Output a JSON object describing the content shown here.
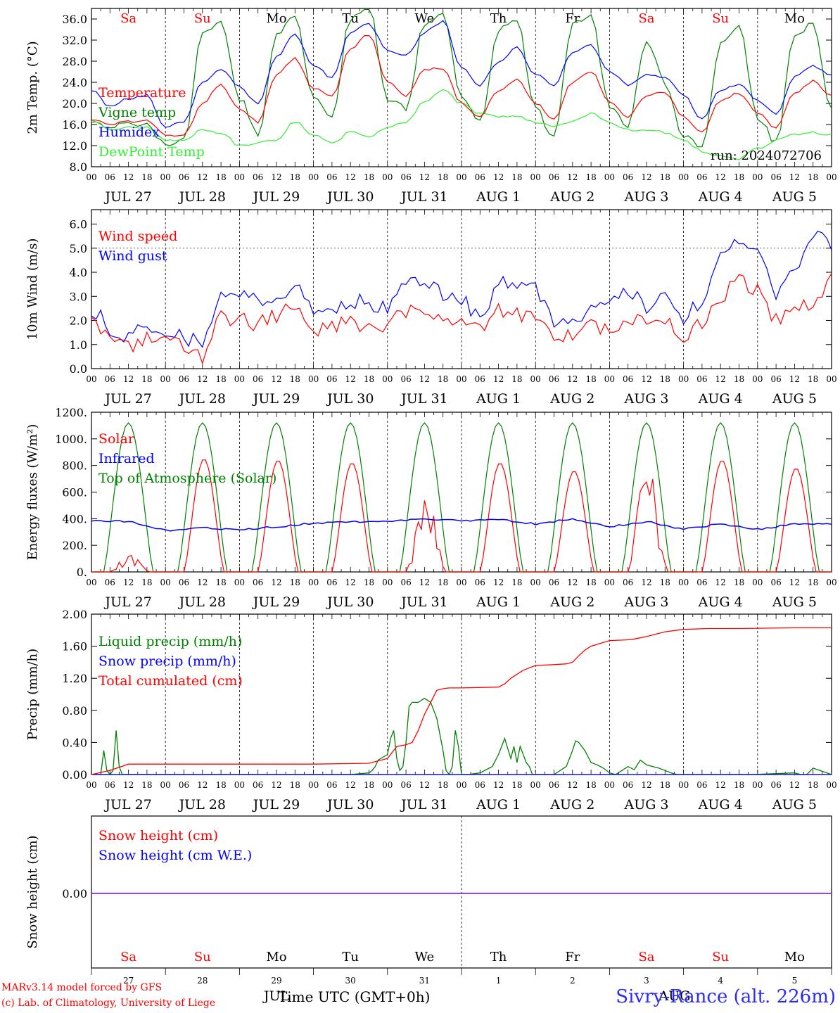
{
  "footer": {
    "model": "MARv3.14 model forced by GFS",
    "credit": "(c) Lab. of Climatology, University of Liege",
    "station": "Sivry-Rance (alt. 226m)"
  },
  "chart_data": {
    "days": {
      "weekdays": [
        "Sa",
        "Su",
        "Mo",
        "Tu",
        "We",
        "Th",
        "Fr",
        "Sa",
        "Su",
        "Mo"
      ],
      "weekend": [
        true,
        true,
        false,
        false,
        false,
        false,
        false,
        true,
        true,
        false
      ],
      "date_labels": [
        "JUL 27",
        "JUL 28",
        "JUL 29",
        "JUL 30",
        "JUL 31",
        "AUG  1",
        "AUG  2",
        "AUG  3",
        "AUG  4",
        "AUG  5"
      ],
      "day_numbers": [
        "27",
        "28",
        "29",
        "30",
        "31",
        "1",
        "2",
        "3",
        "4",
        "5"
      ],
      "hour_labels": [
        "00",
        "06",
        "12",
        "18"
      ],
      "final_hour_label": "00"
    },
    "panels": [
      {
        "id": "temperature",
        "type": "line",
        "ylabel": "2m Temp. (°C)",
        "ylim": [
          8,
          38
        ],
        "yticks": [
          "8.0",
          "12.0",
          "16.0",
          "20.0",
          "24.0",
          "28.0",
          "32.0",
          "36.0"
        ],
        "ytick_values": [
          8,
          12,
          16,
          20,
          24,
          28,
          32,
          36
        ],
        "annotation": "run: 2024072706",
        "x_hours": [
          0,
          6,
          12,
          18,
          24,
          30,
          36,
          42,
          48,
          54,
          60,
          66,
          72,
          78,
          84,
          90,
          96,
          102,
          108,
          114,
          120,
          126,
          132,
          138,
          144,
          150,
          156,
          162,
          168,
          174,
          180,
          186,
          192,
          198,
          204,
          210,
          216,
          222,
          228,
          234,
          240
        ],
        "series": [
          {
            "name": "Temperature",
            "color": "#ff0000",
            "values": [
              17.0,
              16.0,
              16.5,
              16.8,
              14.0,
              14.0,
              20.0,
              23.5,
              19.0,
              16.5,
              25.5,
              28.5,
              23.0,
              21.5,
              30.5,
              33.0,
              24.0,
              21.5,
              26.5,
              26.5,
              20.0,
              17.5,
              22.5,
              24.5,
              20.0,
              17.0,
              24.0,
              26.0,
              20.5,
              17.5,
              21.5,
              22.0,
              17.5,
              14.5,
              20.5,
              22.0,
              18.0,
              15.5,
              22.0,
              24.2,
              21.5
            ]
          },
          {
            "name": "Vigne temp",
            "color": "#008000",
            "values": [
              17.0,
              15.0,
              16.5,
              16.0,
              12.0,
              13.0,
              33.0,
              35.0,
              21.0,
              14.0,
              33.0,
              37.0,
              21.0,
              17.5,
              36.0,
              38.0,
              21.0,
              19.0,
              35.0,
              37.0,
              21.0,
              16.5,
              34.0,
              35.5,
              19.0,
              13.5,
              35.0,
              36.5,
              19.5,
              16.0,
              31.5,
              24.0,
              14.0,
              12.0,
              31.0,
              34.5,
              17.5,
              12.5,
              33.0,
              35.0,
              19.0
            ]
          },
          {
            "name": "Humidex",
            "color": "#0000ff",
            "values": [
              22.5,
              19.5,
              21.0,
              21.5,
              15.5,
              16.5,
              24.0,
              26.5,
              23.0,
              20.0,
              29.0,
              33.0,
              27.0,
              25.0,
              33.5,
              35.0,
              30.0,
              29.0,
              33.5,
              35.5,
              27.0,
              23.5,
              28.0,
              30.5,
              25.5,
              23.5,
              29.5,
              31.0,
              26.0,
              23.5,
              25.5,
              25.0,
              21.5,
              17.0,
              22.5,
              23.5,
              20.5,
              18.0,
              25.0,
              27.0,
              25.5
            ]
          },
          {
            "name": "DewPoint Temp",
            "color": "#33ee33",
            "values": [
              17.0,
              15.0,
              15.5,
              15.5,
              13.0,
              13.0,
              15.0,
              14.5,
              12.0,
              12.5,
              13.0,
              16.5,
              14.0,
              12.5,
              14.5,
              13.5,
              15.5,
              16.5,
              20.5,
              22.5,
              20.0,
              18.0,
              17.5,
              17.5,
              16.5,
              15.5,
              16.5,
              18.0,
              16.5,
              15.0,
              15.0,
              14.5,
              13.0,
              11.0,
              10.0,
              9.5,
              11.5,
              13.0,
              14.0,
              14.5,
              14.0
            ]
          }
        ]
      },
      {
        "id": "wind",
        "type": "line",
        "ylabel": "10m Wind (m/s)",
        "ylim": [
          0,
          6.6
        ],
        "yticks": [
          "0.0",
          "1.0",
          "2.0",
          "3.0",
          "4.0",
          "5.0",
          "6.0"
        ],
        "ytick_values": [
          0,
          1,
          2,
          3,
          4,
          5,
          6
        ],
        "reference_line": 5.0,
        "x_hours": [
          0,
          6,
          12,
          18,
          24,
          30,
          36,
          42,
          48,
          54,
          60,
          66,
          72,
          78,
          84,
          90,
          96,
          102,
          108,
          114,
          120,
          126,
          132,
          138,
          144,
          150,
          156,
          162,
          168,
          174,
          180,
          186,
          192,
          198,
          204,
          210,
          216,
          222,
          228,
          234,
          240
        ],
        "series": [
          {
            "name": "Wind speed",
            "color": "#ff0000",
            "values": [
              1.8,
              1.2,
              0.8,
              1.2,
              1.3,
              1.0,
              0.5,
              2.2,
              2.0,
              1.8,
              2.2,
              2.6,
              1.5,
              1.8,
              2.0,
              1.7,
              1.8,
              2.4,
              2.6,
              2.0,
              1.8,
              1.5,
              2.5,
              2.2,
              2.3,
              1.2,
              1.3,
              1.8,
              1.7,
              1.9,
              2.0,
              2.2,
              1.3,
              2.0,
              3.0,
              3.6,
              3.3,
              2.0,
              2.6,
              2.8,
              3.7
            ]
          },
          {
            "name": "Wind gust",
            "color": "#0000ff",
            "values": [
              2.5,
              1.7,
              1.3,
              1.8,
              1.7,
              1.3,
              1.1,
              3.0,
              3.1,
              2.8,
              3.0,
              3.6,
              2.2,
              2.6,
              2.8,
              2.7,
              2.6,
              3.5,
              3.7,
              3.0,
              2.9,
              2.1,
              3.6,
              3.2,
              3.5,
              1.8,
              1.9,
              2.5,
              2.8,
              3.3,
              2.5,
              3.2,
              2.2,
              2.8,
              4.5,
              5.2,
              4.8,
              2.9,
              4.0,
              5.7,
              4.9
            ]
          }
        ]
      },
      {
        "id": "energy",
        "type": "line",
        "ylabel": "Energy fluxes (W/m²)",
        "ylim": [
          0,
          1200
        ],
        "yticks": [
          "0.",
          "200.",
          "400.",
          "600.",
          "800.",
          "1000.",
          "1200."
        ],
        "ytick_values": [
          0,
          200,
          400,
          600,
          800,
          1000,
          1200
        ],
        "toa_peak": 1120,
        "toa_sunrise_hour": 4,
        "toa_sunset_hour": 20,
        "solar_daily_peak": [
          130,
          850,
          840,
          820,
          530,
          820,
          760,
          760,
          840,
          780
        ],
        "infrared": {
          "x_hours": [
            0,
            12,
            24,
            36,
            48,
            60,
            72,
            84,
            96,
            108,
            120,
            132,
            144,
            156,
            168,
            180,
            192,
            204,
            216,
            228,
            240
          ],
          "values": [
            385,
            380,
            310,
            330,
            315,
            340,
            365,
            375,
            380,
            395,
            385,
            395,
            360,
            400,
            340,
            380,
            320,
            360,
            320,
            360,
            365
          ]
        },
        "series": [
          {
            "name": "Solar",
            "color": "#ff0000"
          },
          {
            "name": "Infrared",
            "color": "#0000ff"
          },
          {
            "name": "Top of Atmosphere (Solar)",
            "color": "#008000"
          }
        ]
      },
      {
        "id": "precip",
        "type": "line",
        "ylabel": "Precip (mm/h)",
        "ylim": [
          0,
          2.0
        ],
        "yticks": [
          "0.00",
          "0.40",
          "0.80",
          "1.20",
          "1.60",
          "2.00"
        ],
        "ytick_values": [
          0,
          0.4,
          0.8,
          1.2,
          1.6,
          2.0
        ],
        "series": [
          {
            "name": "Liquid precip (mm/h)",
            "color": "#008000",
            "x_hours": [
              0,
              3,
              4,
              5,
              6,
              7,
              8,
              9,
              10,
              11,
              12,
              24,
              36,
              48,
              60,
              72,
              84,
              90,
              91,
              92,
              93,
              96,
              97,
              98,
              99,
              100,
              101,
              102,
              103,
              104,
              106,
              108,
              110,
              112,
              114,
              115,
              116,
              117,
              118,
              119,
              120,
              121,
              122,
              126,
              130,
              132,
              134,
              136,
              137,
              138,
              139,
              140,
              141,
              142,
              143,
              144,
              150,
              154,
              156,
              157,
              158,
              159,
              160,
              162,
              164,
              166,
              168,
              170,
              172,
              174,
              176,
              178,
              180,
              182,
              184,
              186,
              188,
              190,
              192,
              214,
              228,
              230,
              232,
              234,
              240
            ],
            "values": [
              0,
              0,
              0.3,
              0.05,
              0,
              0.05,
              0.55,
              0.1,
              0,
              0,
              0,
              0,
              0,
              0,
              0,
              0,
              0,
              0.02,
              0.05,
              0.1,
              0.18,
              0.25,
              0.45,
              0.55,
              0.2,
              0.05,
              0.1,
              0.4,
              0.85,
              0.9,
              0.9,
              0.95,
              0.9,
              0.7,
              0.3,
              0.05,
              0,
              0.1,
              0.55,
              0.35,
              0,
              0,
              0,
              0.02,
              0.1,
              0.25,
              0.45,
              0.2,
              0.35,
              0.15,
              0.35,
              0.25,
              0.15,
              0.1,
              0,
              0,
              0,
              0.1,
              0.3,
              0.42,
              0.4,
              0.35,
              0.3,
              0.15,
              0.12,
              0.08,
              0.02,
              0,
              0.05,
              0.1,
              0.06,
              0.18,
              0.12,
              0.1,
              0.08,
              0.05,
              0.02,
              0,
              0,
              0,
              0.02,
              0,
              0,
              0.08,
              0
            ]
          },
          {
            "name": "Snow precip (mm/h)",
            "color": "#0000ff",
            "x_hours": [
              0,
              240
            ],
            "values": [
              0,
              0
            ]
          },
          {
            "name": "Total cumulated (cm)",
            "color": "#ff0000",
            "x_hours": [
              0,
              6,
              12,
              24,
              48,
              72,
              90,
              96,
              99,
              102,
              104,
              106,
              108,
              110,
              112,
              114,
              116,
              118,
              120,
              132,
              134,
              136,
              140,
              144,
              150,
              154,
              156,
              158,
              160,
              162,
              168,
              174,
              176,
              180,
              186,
              190,
              192,
              200,
              210,
              228,
              240
            ],
            "values": [
              0,
              0.05,
              0.13,
              0.13,
              0.13,
              0.13,
              0.14,
              0.2,
              0.35,
              0.37,
              0.4,
              0.55,
              0.75,
              0.9,
              1.05,
              1.07,
              1.08,
              1.08,
              1.08,
              1.09,
              1.13,
              1.2,
              1.3,
              1.36,
              1.37,
              1.38,
              1.4,
              1.48,
              1.55,
              1.6,
              1.67,
              1.68,
              1.69,
              1.72,
              1.78,
              1.8,
              1.81,
              1.82,
              1.82,
              1.83,
              1.83
            ]
          }
        ]
      },
      {
        "id": "snow",
        "type": "line",
        "ylabel": "Snow height (cm)",
        "yticks": [
          "0.00"
        ],
        "series": [
          {
            "name": "Snow height (cm)",
            "color": "#ff0000",
            "values": [
              0,
              0
            ]
          },
          {
            "name": "Snow height (cm W.E.)",
            "color": "#0000ff",
            "values": [
              0,
              0
            ]
          }
        ],
        "month_labels": [
          "JUL",
          "AUG"
        ],
        "xlabel": "Time UTC (GMT+0h)"
      }
    ]
  }
}
